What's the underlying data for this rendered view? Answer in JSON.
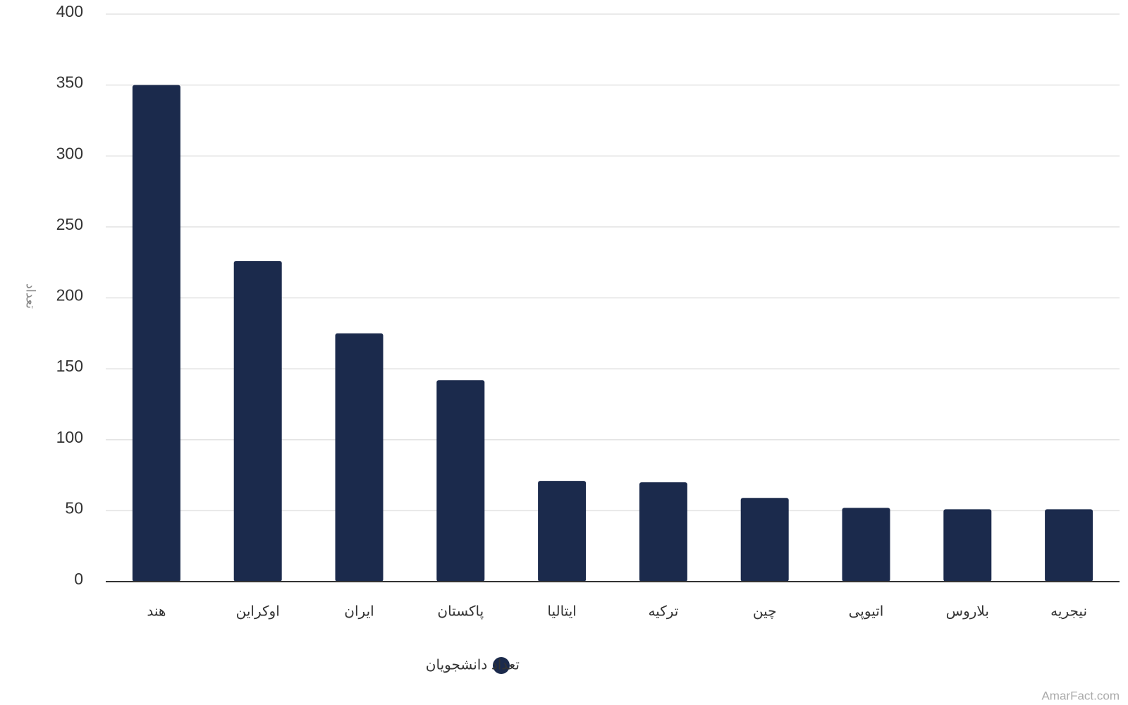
{
  "chart_data": {
    "type": "bar",
    "y_axis_label": "تعداد",
    "categories": [
      "هند",
      "اوکراین",
      "ایران",
      "پاکستان",
      "ایتالیا",
      "ترکیه",
      "چین",
      "اتیوپی",
      "بلاروس",
      "نیجریه"
    ],
    "series": [
      {
        "name": "تعداد دانشجویان",
        "color": "#1b2a4c",
        "values": [
          350,
          226,
          175,
          142,
          71,
          70,
          59,
          52,
          51,
          51
        ]
      }
    ],
    "ylim": [
      0,
      400
    ],
    "yticks": [
      0,
      50,
      100,
      150,
      200,
      250,
      300,
      350,
      400
    ],
    "grid": true,
    "legend": "bottom",
    "watermark": "AmarFact.com"
  }
}
